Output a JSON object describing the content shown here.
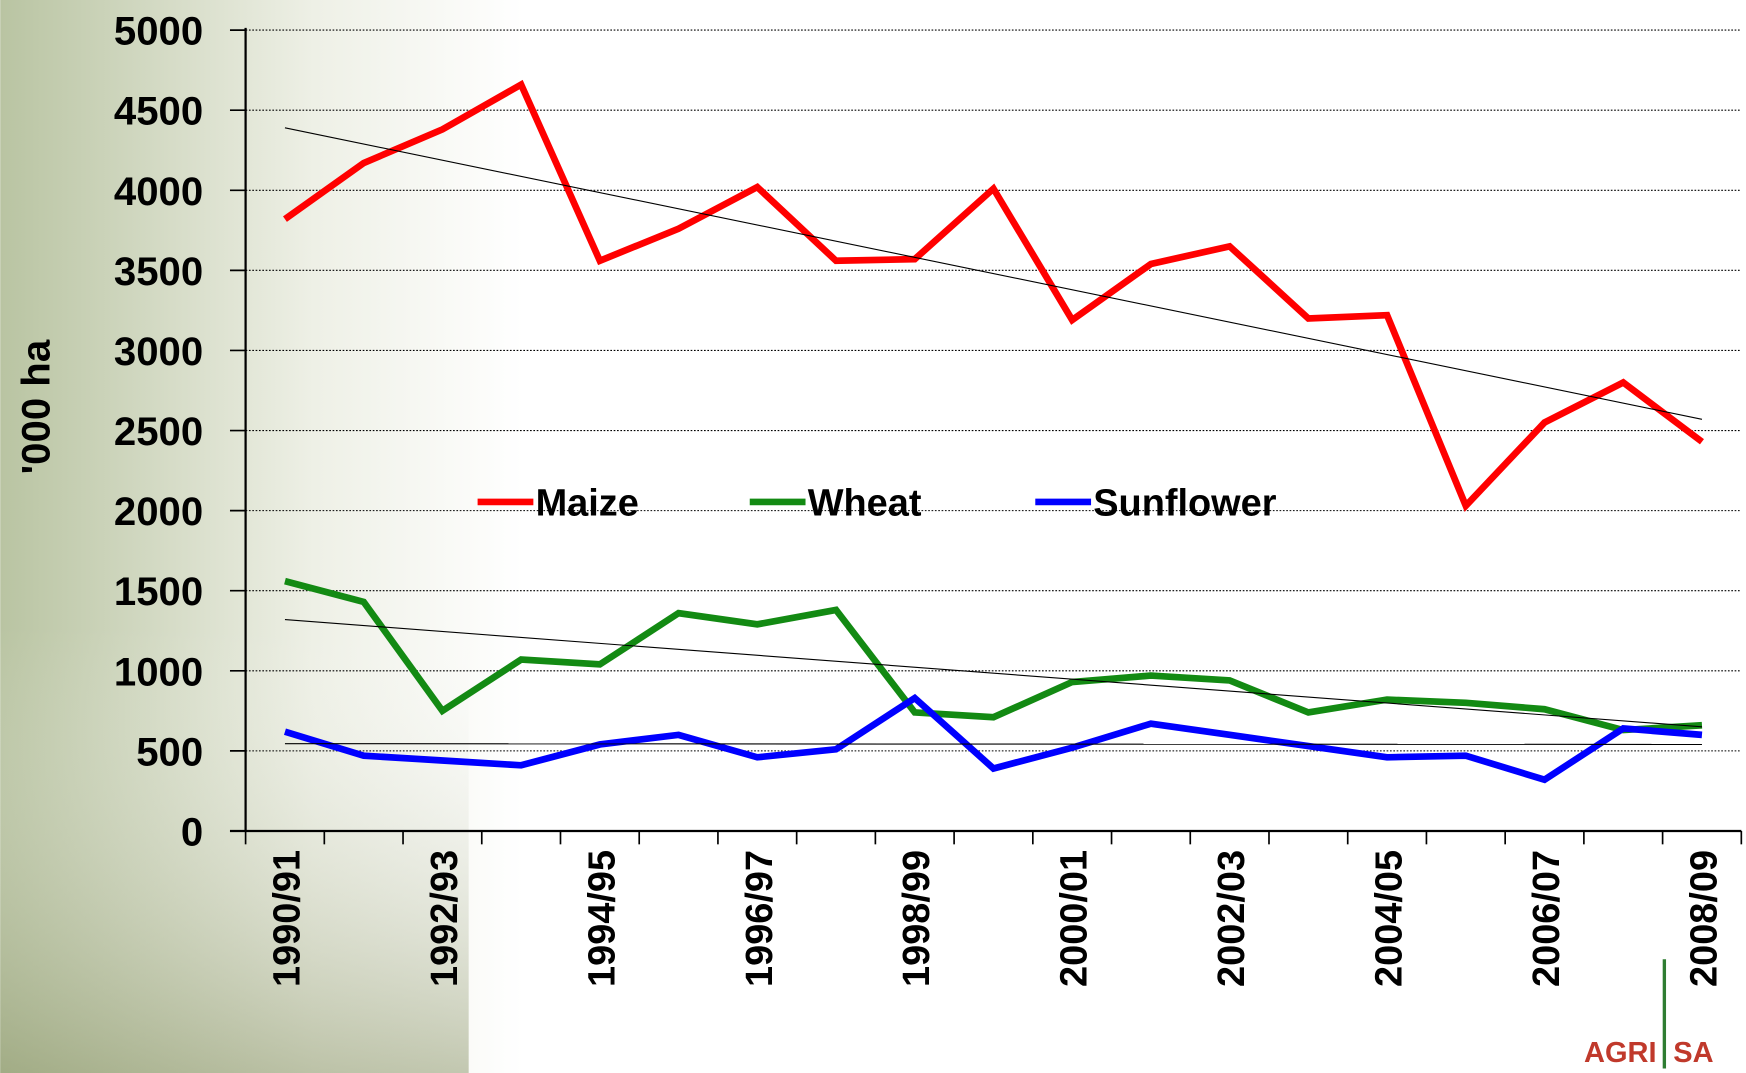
{
  "chart_data": {
    "type": "line",
    "y_label": "'000 ha",
    "categories": [
      "1990/91",
      null,
      "1992/93",
      null,
      "1994/95",
      null,
      "1996/97",
      null,
      "1998/99",
      null,
      "2000/01",
      null,
      "2002/03",
      null,
      "2004/05",
      null,
      "2006/07",
      null,
      "2008/09"
    ],
    "series": [
      {
        "name": "Maize",
        "color": "#ff0000",
        "values": [
          3820,
          4170,
          4380,
          4660,
          3560,
          3760,
          4020,
          3560,
          3570,
          4010,
          3190,
          3540,
          3650,
          3200,
          3220,
          2030,
          2550,
          2800,
          2430
        ]
      },
      {
        "name": "Wheat",
        "color": "#138a13",
        "values": [
          1560,
          1430,
          750,
          1070,
          1040,
          1360,
          1290,
          1380,
          740,
          710,
          930,
          970,
          940,
          740,
          820,
          800,
          760,
          630,
          660
        ]
      },
      {
        "name": "Sunflower",
        "color": "#0000ff",
        "values": [
          620,
          470,
          440,
          410,
          540,
          600,
          460,
          510,
          830,
          390,
          520,
          670,
          600,
          530,
          460,
          470,
          320,
          640,
          600
        ]
      }
    ],
    "trend_lines": [
      {
        "values": [
          4390,
          2570
        ]
      },
      {
        "values": [
          1320,
          650
        ]
      },
      {
        "values": [
          545,
          540
        ]
      }
    ],
    "ylim": [
      0,
      5000
    ],
    "yticks": [
      0,
      500,
      1000,
      1500,
      2000,
      2500,
      3000,
      3500,
      4000,
      4500,
      5000
    ],
    "grid": true,
    "legend": "center"
  },
  "logo": [
    "AGRI",
    "SA"
  ]
}
